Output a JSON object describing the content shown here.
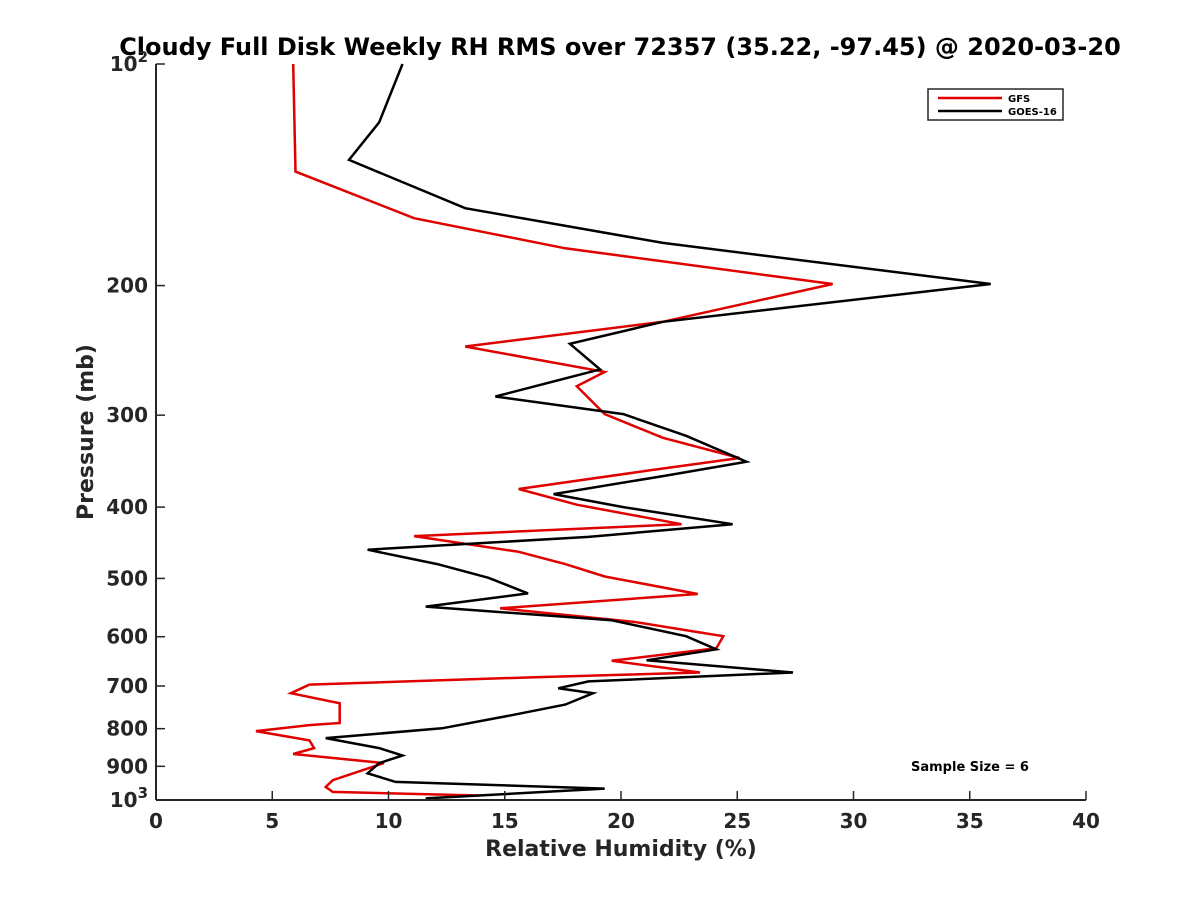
{
  "chart_data": {
    "type": "line",
    "title": "Cloudy Full Disk Weekly RH RMS over 72357 (35.22, -97.45) @ 2020-03-20",
    "xlabel": "Relative Humidity (%)",
    "ylabel": "Pressure (mb)",
    "xlim": [
      0,
      40
    ],
    "ylim": [
      100,
      1000
    ],
    "y_scale": "log",
    "y_reversed": true,
    "grid": false,
    "legend_position": "top-right",
    "x_ticks": [
      "0",
      "5",
      "10",
      "15",
      "20",
      "25",
      "30",
      "35",
      "40"
    ],
    "y_ticks": [
      {
        "value": 100,
        "base": "10",
        "exp": "2"
      },
      {
        "value": 200,
        "label": "200"
      },
      {
        "value": 300,
        "label": "300"
      },
      {
        "value": 400,
        "label": "400"
      },
      {
        "value": 500,
        "label": "500"
      },
      {
        "value": 600,
        "label": "600"
      },
      {
        "value": 700,
        "label": "700"
      },
      {
        "value": 800,
        "label": "800"
      },
      {
        "value": 900,
        "label": "900"
      },
      {
        "value": 1000,
        "base": "10",
        "exp": "3"
      }
    ],
    "series": [
      {
        "name": "GFS",
        "color": "#e00000",
        "points": [
          [
            5.9,
            100
          ],
          [
            6.0,
            140
          ],
          [
            11.1,
            162
          ],
          [
            17.6,
            178
          ],
          [
            29.1,
            199
          ],
          [
            21.8,
            224
          ],
          [
            13.3,
            242
          ],
          [
            19.3,
            262
          ],
          [
            18.1,
            274
          ],
          [
            19.3,
            299
          ],
          [
            21.8,
            322
          ],
          [
            25.1,
            343
          ],
          [
            21.1,
            357
          ],
          [
            15.6,
            378
          ],
          [
            18.1,
            397
          ],
          [
            22.6,
            422
          ],
          [
            11.1,
            438
          ],
          [
            15.6,
            460
          ],
          [
            17.6,
            478
          ],
          [
            19.3,
            497
          ],
          [
            23.3,
            525
          ],
          [
            14.8,
            549
          ],
          [
            20.6,
            573
          ],
          [
            24.4,
            599
          ],
          [
            24.1,
            622
          ],
          [
            19.6,
            647
          ],
          [
            23.4,
            671
          ],
          [
            16.3,
            681
          ],
          [
            6.6,
            697
          ],
          [
            5.8,
            716
          ],
          [
            7.9,
            739
          ],
          [
            7.9,
            786
          ],
          [
            6.6,
            791
          ],
          [
            4.3,
            806
          ],
          [
            6.6,
            830
          ],
          [
            6.8,
            850
          ],
          [
            5.9,
            866
          ],
          [
            9.8,
            891
          ],
          [
            7.6,
            940
          ],
          [
            7.3,
            960
          ],
          [
            7.6,
            975
          ],
          [
            13.9,
            986
          ]
        ]
      },
      {
        "name": "GOES-16",
        "color": "#000000",
        "points": [
          [
            10.6,
            100
          ],
          [
            9.6,
            120
          ],
          [
            8.3,
            135
          ],
          [
            13.3,
            157
          ],
          [
            21.8,
            175
          ],
          [
            35.9,
            199
          ],
          [
            21.8,
            224
          ],
          [
            17.8,
            240
          ],
          [
            19.1,
            260
          ],
          [
            14.6,
            283
          ],
          [
            20.1,
            299
          ],
          [
            22.8,
            320
          ],
          [
            25.4,
            347
          ],
          [
            21.8,
            363
          ],
          [
            17.1,
            384
          ],
          [
            20.1,
            400
          ],
          [
            24.8,
            422
          ],
          [
            18.6,
            439
          ],
          [
            9.1,
            457
          ],
          [
            12.1,
            478
          ],
          [
            14.3,
            499
          ],
          [
            16.0,
            524
          ],
          [
            11.6,
            546
          ],
          [
            19.6,
            570
          ],
          [
            22.8,
            599
          ],
          [
            24.1,
            624
          ],
          [
            21.1,
            646
          ],
          [
            27.4,
            671
          ],
          [
            18.6,
            690
          ],
          [
            17.3,
            705
          ],
          [
            18.8,
            716
          ],
          [
            17.6,
            742
          ],
          [
            15.3,
            767
          ],
          [
            12.3,
            799
          ],
          [
            7.3,
            824
          ],
          [
            9.6,
            850
          ],
          [
            10.6,
            870
          ],
          [
            9.6,
            891
          ],
          [
            9.1,
            920
          ],
          [
            10.3,
            945
          ],
          [
            19.3,
            965
          ],
          [
            11.6,
            995
          ]
        ]
      }
    ],
    "annotation": "Sample Size = 6"
  }
}
